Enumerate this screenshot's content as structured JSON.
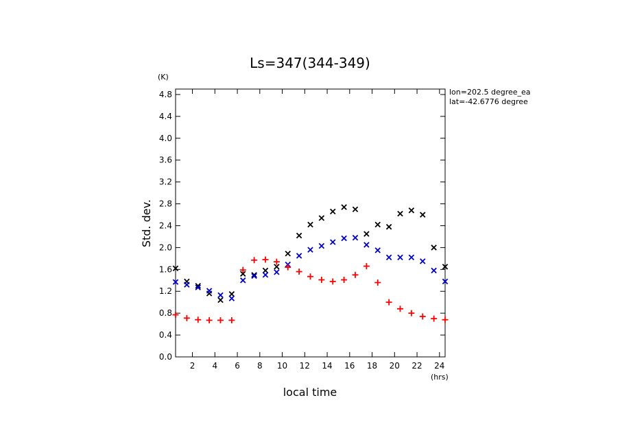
{
  "chart_data": {
    "type": "scatter",
    "title": "Ls=347(344-349)",
    "xlabel": "local time",
    "ylabel": "Std. dev.",
    "xunit": "(hrs)",
    "yunit": "(K)",
    "xlim": [
      0.5,
      24.5
    ],
    "ylim": [
      0.0,
      4.9
    ],
    "xticks": [
      2,
      4,
      6,
      8,
      10,
      12,
      14,
      16,
      18,
      20,
      22,
      24
    ],
    "yticks": [
      0.0,
      0.4,
      0.8,
      1.2,
      1.6,
      2.0,
      2.4,
      2.8,
      3.2,
      3.6,
      4.0,
      4.4,
      4.8
    ],
    "grid": false,
    "annotations": [
      "lon=202.5 degree_ea",
      "lat=-42.6776 degree"
    ],
    "x": [
      0.5,
      1.5,
      2.5,
      3.5,
      4.5,
      5.5,
      6.5,
      7.5,
      8.5,
      9.5,
      10.5,
      11.5,
      12.5,
      13.5,
      14.5,
      15.5,
      16.5,
      17.5,
      18.5,
      19.5,
      20.5,
      21.5,
      22.5,
      23.5,
      24.5
    ],
    "series": [
      {
        "marker": "x",
        "color": "#000000",
        "values": [
          1.62,
          1.38,
          1.3,
          1.16,
          1.04,
          1.15,
          1.52,
          1.5,
          1.58,
          1.65,
          1.89,
          2.22,
          2.42,
          2.54,
          2.66,
          2.74,
          2.7,
          2.25,
          2.42,
          2.38,
          2.62,
          2.68,
          2.6,
          2.0,
          1.65
        ]
      },
      {
        "marker": "x",
        "color": "#0000cc",
        "values": [
          1.37,
          1.32,
          1.27,
          1.21,
          1.13,
          1.07,
          1.4,
          1.48,
          1.5,
          1.55,
          1.69,
          1.85,
          1.96,
          2.03,
          2.1,
          2.17,
          2.18,
          2.05,
          1.95,
          1.82,
          1.82,
          1.82,
          1.75,
          1.58,
          1.38
        ]
      },
      {
        "marker": "+",
        "color": "#ff0000",
        "values": [
          0.77,
          0.71,
          0.68,
          0.67,
          0.67,
          0.67,
          1.59,
          1.77,
          1.78,
          1.74,
          1.64,
          1.56,
          1.47,
          1.41,
          1.38,
          1.41,
          1.5,
          1.66,
          1.36,
          1.0,
          0.88,
          0.8,
          0.74,
          0.7,
          0.68
        ]
      }
    ]
  }
}
